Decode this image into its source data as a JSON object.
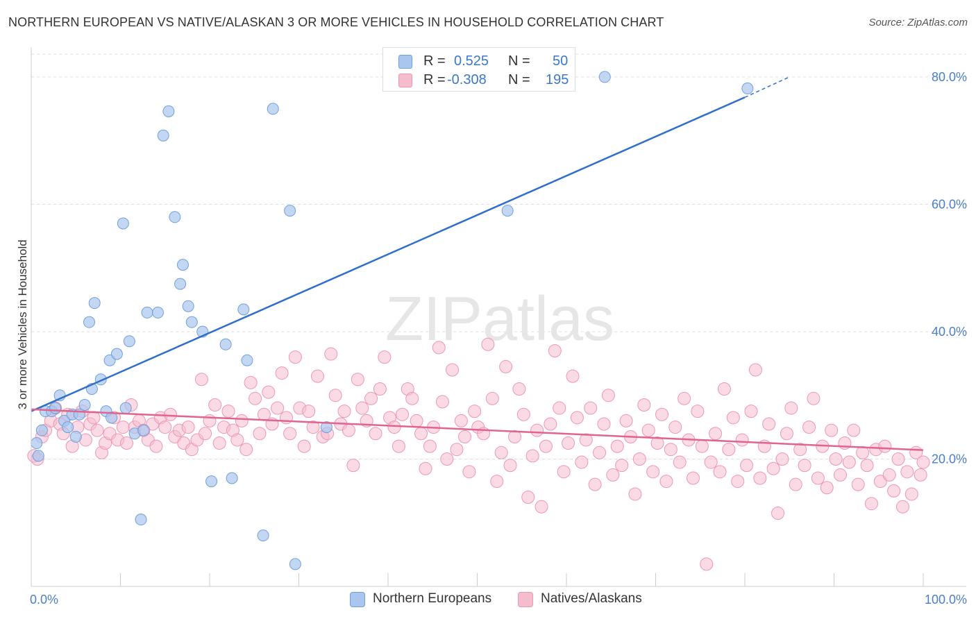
{
  "header": {
    "title": "NORTHERN EUROPEAN VS NATIVE/ALASKAN 3 OR MORE VEHICLES IN HOUSEHOLD CORRELATION CHART",
    "source": "Source: ZipAtlas.com"
  },
  "legend": {
    "r_label": "R =",
    "n_label": "N =",
    "series1": {
      "r": "0.525",
      "n": "50"
    },
    "series2": {
      "r": "-0.308",
      "n": "195"
    }
  },
  "colors": {
    "blue_fill": "#a9c6ee",
    "blue_stroke": "#6f9fdc",
    "blue_line": "#2f6fca",
    "pink_fill": "#f5bccd",
    "pink_stroke": "#ec97b2",
    "pink_line": "#e0648f",
    "grid": "#dddddd",
    "axis_text": "#4a7fc8"
  },
  "chart_data": {
    "type": "scatter",
    "title": "NORTHERN EUROPEAN VS NATIVE/ALASKAN 3 OR MORE VEHICLES IN HOUSEHOLD CORRELATION CHART",
    "xlabel": "",
    "ylabel": "3 or more Vehicles in Household",
    "xlim": [
      0,
      100
    ],
    "ylim": [
      0,
      85
    ],
    "x_tick_labels": [
      "0.0%",
      "100.0%"
    ],
    "y_ticks": [
      20,
      40,
      60,
      80
    ],
    "y_tick_labels": [
      "20.0%",
      "40.0%",
      "60.0%",
      "80.0%"
    ],
    "watermark": "ZIPatlas",
    "series": [
      {
        "name": "Northern Europeans",
        "r": 0.525,
        "n": 50,
        "trend": {
          "x0": 0,
          "y0": 27.5,
          "x1": 80,
          "y1": 76.8,
          "dash_to_x": 85,
          "dash_to_y": 80.0
        },
        "points": [
          [
            0.6,
            22.5
          ],
          [
            0.8,
            20.5
          ],
          [
            1.2,
            24.5
          ],
          [
            1.6,
            27.5
          ],
          [
            2.3,
            27.5
          ],
          [
            2.7,
            28.0
          ],
          [
            3.2,
            30.0
          ],
          [
            3.7,
            26.0
          ],
          [
            4.1,
            25.0
          ],
          [
            4.6,
            27.0
          ],
          [
            5.0,
            23.5
          ],
          [
            5.4,
            27.0
          ],
          [
            6.0,
            28.5
          ],
          [
            6.5,
            41.5
          ],
          [
            6.8,
            31.0
          ],
          [
            7.1,
            44.5
          ],
          [
            7.8,
            32.5
          ],
          [
            8.4,
            27.5
          ],
          [
            8.8,
            35.5
          ],
          [
            9.0,
            26.5
          ],
          [
            9.6,
            36.5
          ],
          [
            10.3,
            57.0
          ],
          [
            10.6,
            28.0
          ],
          [
            11.0,
            38.5
          ],
          [
            11.6,
            24.0
          ],
          [
            12.3,
            10.5
          ],
          [
            12.6,
            24.5
          ],
          [
            13.0,
            43.0
          ],
          [
            14.2,
            43.0
          ],
          [
            14.8,
            70.8
          ],
          [
            15.4,
            74.6
          ],
          [
            16.1,
            58.0
          ],
          [
            16.7,
            47.5
          ],
          [
            17.0,
            50.5
          ],
          [
            17.6,
            44.0
          ],
          [
            18.0,
            41.5
          ],
          [
            19.2,
            40.0
          ],
          [
            20.2,
            16.5
          ],
          [
            21.8,
            38.0
          ],
          [
            22.5,
            17.0
          ],
          [
            23.8,
            43.5
          ],
          [
            24.2,
            35.5
          ],
          [
            26.0,
            8.0
          ],
          [
            27.1,
            75.0
          ],
          [
            29.0,
            59.0
          ],
          [
            29.6,
            3.5
          ],
          [
            33.1,
            25.0
          ],
          [
            53.4,
            59.0
          ],
          [
            64.3,
            80.0
          ],
          [
            80.3,
            78.2
          ]
        ]
      },
      {
        "name": "Natives/Alaskans",
        "r": -0.308,
        "n": 195,
        "trend": {
          "x0": 0,
          "y0": 27.8,
          "x1": 100,
          "y1": 21.4
        },
        "points": [
          [
            0.3,
            20.5
          ],
          [
            0.7,
            20.0
          ],
          [
            1.2,
            23.5
          ],
          [
            1.6,
            24.5
          ],
          [
            2.2,
            26.0
          ],
          [
            2.7,
            28.0
          ],
          [
            3.2,
            25.5
          ],
          [
            3.6,
            24.0
          ],
          [
            4.1,
            27.0
          ],
          [
            4.6,
            22.0
          ],
          [
            5.2,
            25.0
          ],
          [
            5.7,
            27.5
          ],
          [
            6.1,
            23.0
          ],
          [
            6.6,
            25.5
          ],
          [
            7.0,
            26.5
          ],
          [
            7.4,
            24.5
          ],
          [
            7.9,
            21.0
          ],
          [
            8.3,
            22.5
          ],
          [
            8.8,
            24.0
          ],
          [
            9.3,
            26.5
          ],
          [
            9.7,
            23.0
          ],
          [
            10.3,
            25.0
          ],
          [
            10.7,
            22.5
          ],
          [
            11.2,
            28.5
          ],
          [
            11.6,
            25.0
          ],
          [
            12.1,
            26.0
          ],
          [
            12.6,
            24.5
          ],
          [
            13.1,
            23.0
          ],
          [
            13.6,
            25.5
          ],
          [
            14.0,
            22.0
          ],
          [
            14.5,
            26.5
          ],
          [
            15.0,
            25.0
          ],
          [
            15.6,
            27.0
          ],
          [
            16.1,
            23.5
          ],
          [
            16.6,
            24.5
          ],
          [
            17.1,
            22.5
          ],
          [
            17.6,
            25.0
          ],
          [
            18.0,
            21.5
          ],
          [
            18.6,
            23.0
          ],
          [
            19.1,
            32.5
          ],
          [
            19.5,
            24.0
          ],
          [
            20.0,
            26.0
          ],
          [
            20.6,
            28.5
          ],
          [
            21.1,
            22.5
          ],
          [
            21.6,
            25.0
          ],
          [
            22.1,
            27.5
          ],
          [
            22.6,
            24.5
          ],
          [
            23.1,
            23.0
          ],
          [
            23.6,
            26.0
          ],
          [
            24.1,
            21.5
          ],
          [
            24.6,
            32.0
          ],
          [
            25.1,
            29.5
          ],
          [
            25.6,
            24.0
          ],
          [
            26.1,
            27.0
          ],
          [
            26.6,
            30.5
          ],
          [
            27.0,
            25.5
          ],
          [
            27.6,
            28.0
          ],
          [
            28.1,
            33.5
          ],
          [
            28.6,
            26.5
          ],
          [
            29.0,
            24.0
          ],
          [
            29.6,
            36.0
          ],
          [
            30.1,
            28.0
          ],
          [
            30.6,
            22.0
          ],
          [
            31.1,
            27.5
          ],
          [
            31.6,
            25.0
          ],
          [
            32.1,
            33.0
          ],
          [
            32.7,
            23.5
          ],
          [
            33.2,
            24.0
          ],
          [
            33.6,
            36.5
          ],
          [
            34.1,
            30.0
          ],
          [
            34.7,
            25.5
          ],
          [
            35.1,
            27.5
          ],
          [
            35.6,
            24.5
          ],
          [
            36.1,
            19.0
          ],
          [
            36.6,
            32.5
          ],
          [
            37.1,
            28.0
          ],
          [
            37.6,
            26.0
          ],
          [
            38.1,
            29.5
          ],
          [
            38.6,
            24.0
          ],
          [
            39.1,
            31.0
          ],
          [
            39.6,
            36.0
          ],
          [
            40.2,
            26.5
          ],
          [
            40.7,
            25.0
          ],
          [
            41.2,
            22.0
          ],
          [
            41.6,
            27.0
          ],
          [
            42.2,
            31.0
          ],
          [
            42.7,
            29.5
          ],
          [
            43.2,
            26.0
          ],
          [
            43.7,
            24.0
          ],
          [
            44.2,
            18.5
          ],
          [
            44.7,
            22.0
          ],
          [
            45.1,
            25.0
          ],
          [
            45.7,
            37.5
          ],
          [
            46.1,
            29.0
          ],
          [
            46.6,
            20.0
          ],
          [
            47.2,
            34.0
          ],
          [
            47.7,
            21.5
          ],
          [
            48.2,
            26.0
          ],
          [
            48.6,
            23.5
          ],
          [
            49.1,
            18.0
          ],
          [
            49.7,
            27.5
          ],
          [
            50.1,
            25.0
          ],
          [
            50.7,
            24.0
          ],
          [
            51.2,
            38.0
          ],
          [
            51.7,
            29.5
          ],
          [
            52.2,
            16.5
          ],
          [
            52.7,
            21.0
          ],
          [
            53.2,
            34.5
          ],
          [
            53.7,
            19.0
          ],
          [
            54.2,
            23.5
          ],
          [
            54.7,
            31.0
          ],
          [
            55.2,
            27.0
          ],
          [
            55.7,
            14.0
          ],
          [
            56.2,
            20.5
          ],
          [
            56.7,
            24.5
          ],
          [
            57.2,
            12.5
          ],
          [
            57.7,
            22.0
          ],
          [
            58.2,
            25.5
          ],
          [
            58.7,
            37.0
          ],
          [
            59.2,
            28.0
          ],
          [
            59.7,
            18.0
          ],
          [
            60.2,
            22.5
          ],
          [
            60.7,
            33.0
          ],
          [
            61.2,
            26.5
          ],
          [
            61.7,
            19.5
          ],
          [
            62.2,
            23.0
          ],
          [
            62.7,
            28.0
          ],
          [
            63.2,
            16.0
          ],
          [
            63.7,
            21.0
          ],
          [
            64.2,
            25.5
          ],
          [
            64.7,
            30.0
          ],
          [
            65.2,
            17.5
          ],
          [
            65.7,
            22.0
          ],
          [
            66.2,
            19.0
          ],
          [
            66.7,
            26.0
          ],
          [
            67.2,
            23.5
          ],
          [
            67.7,
            14.5
          ],
          [
            68.2,
            20.0
          ],
          [
            68.7,
            28.5
          ],
          [
            69.2,
            24.5
          ],
          [
            69.7,
            18.0
          ],
          [
            70.2,
            22.5
          ],
          [
            70.7,
            27.0
          ],
          [
            71.2,
            16.5
          ],
          [
            71.7,
            21.5
          ],
          [
            72.2,
            25.0
          ],
          [
            72.7,
            19.5
          ],
          [
            73.2,
            29.5
          ],
          [
            73.7,
            23.0
          ],
          [
            74.2,
            17.0
          ],
          [
            74.7,
            27.5
          ],
          [
            75.2,
            22.0
          ],
          [
            75.7,
            3.5
          ],
          [
            76.2,
            19.5
          ],
          [
            76.7,
            24.0
          ],
          [
            77.2,
            18.0
          ],
          [
            77.7,
            31.0
          ],
          [
            78.2,
            21.5
          ],
          [
            78.7,
            26.5
          ],
          [
            79.2,
            16.5
          ],
          [
            79.7,
            23.0
          ],
          [
            80.2,
            19.0
          ],
          [
            80.7,
            27.5
          ],
          [
            81.2,
            34.0
          ],
          [
            81.7,
            17.0
          ],
          [
            82.2,
            22.0
          ],
          [
            82.7,
            25.5
          ],
          [
            83.2,
            18.5
          ],
          [
            83.7,
            11.5
          ],
          [
            84.2,
            20.0
          ],
          [
            84.7,
            24.0
          ],
          [
            85.2,
            28.0
          ],
          [
            85.7,
            16.0
          ],
          [
            86.2,
            21.5
          ],
          [
            86.7,
            19.0
          ],
          [
            87.2,
            25.0
          ],
          [
            87.7,
            29.5
          ],
          [
            88.2,
            17.0
          ],
          [
            88.7,
            22.0
          ],
          [
            89.2,
            15.5
          ],
          [
            89.7,
            24.5
          ],
          [
            90.2,
            20.0
          ],
          [
            90.7,
            17.5
          ],
          [
            91.2,
            22.5
          ],
          [
            91.7,
            19.5
          ],
          [
            92.2,
            24.5
          ],
          [
            92.7,
            16.0
          ],
          [
            93.2,
            21.0
          ],
          [
            93.7,
            19.0
          ],
          [
            94.2,
            13.0
          ],
          [
            94.7,
            21.5
          ],
          [
            95.2,
            16.5
          ],
          [
            95.7,
            22.0
          ],
          [
            96.2,
            17.5
          ],
          [
            96.7,
            15.0
          ],
          [
            97.2,
            20.0
          ],
          [
            97.7,
            12.5
          ],
          [
            98.2,
            18.0
          ],
          [
            98.7,
            14.5
          ],
          [
            99.2,
            21.0
          ],
          [
            99.7,
            17.5
          ],
          [
            100.0,
            19.5
          ]
        ]
      }
    ]
  },
  "bottom_legend": {
    "series1_label": "Northern Europeans",
    "series2_label": "Natives/Alaskans"
  }
}
